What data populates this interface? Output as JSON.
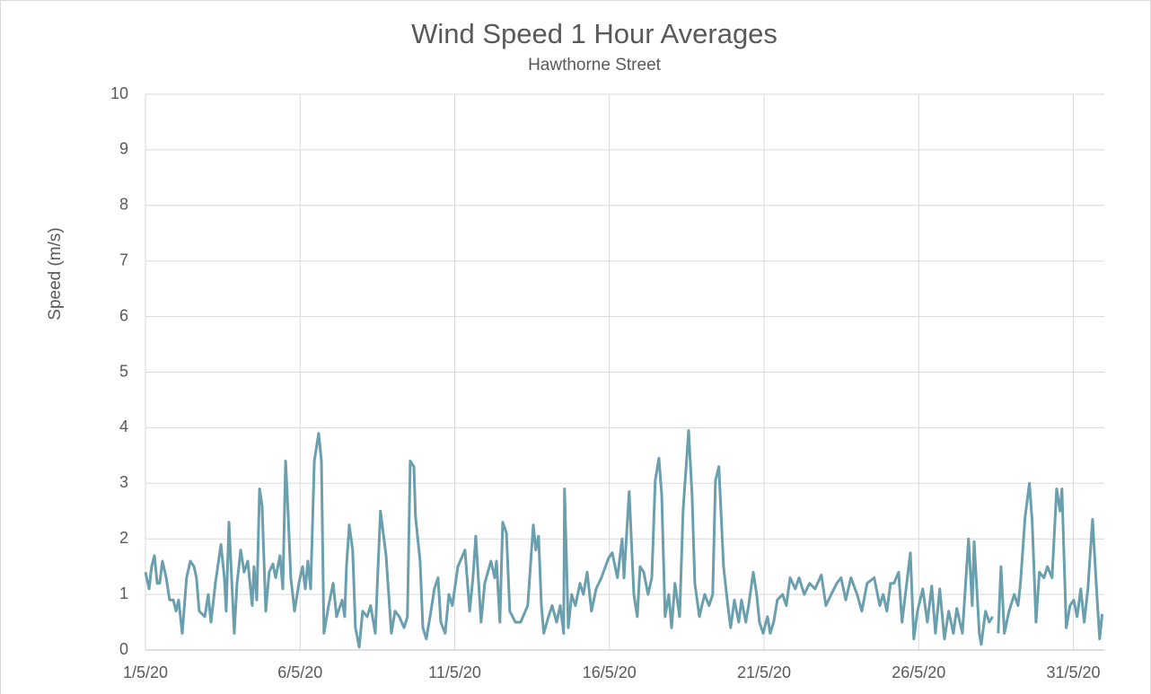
{
  "chart_data": {
    "type": "line",
    "title": "Wind Speed 1 Hour Averages",
    "subtitle": "Hawthorne  Street",
    "y_label": "Speed (m/s)",
    "color": "#6a9fae",
    "grid": true,
    "xlim": [
      0,
      31
    ],
    "ylim": [
      0,
      10
    ],
    "yticks": [
      0,
      1,
      2,
      3,
      4,
      5,
      6,
      7,
      8,
      9,
      10
    ],
    "xticks": [
      {
        "value": 0,
        "label": "1/5/20"
      },
      {
        "value": 5,
        "label": "6/5/20"
      },
      {
        "value": 10,
        "label": "11/5/20"
      },
      {
        "value": 15,
        "label": "16/5/20"
      },
      {
        "value": 20,
        "label": "21/5/20"
      },
      {
        "value": 25,
        "label": "26/5/20"
      },
      {
        "value": 30,
        "label": "31/5/20"
      }
    ],
    "x": [
      0,
      0.12,
      0.2,
      0.29,
      0.38,
      0.46,
      0.55,
      0.67,
      0.78,
      0.9,
      0.99,
      1.07,
      1.19,
      1.33,
      1.45,
      1.57,
      1.65,
      1.74,
      1.92,
      2.03,
      2.12,
      2.26,
      2.44,
      2.55,
      2.61,
      2.7,
      2.87,
      2.96,
      3.08,
      3.19,
      3.31,
      3.45,
      3.51,
      3.6,
      3.69,
      3.77,
      3.89,
      4,
      4.12,
      4.21,
      4.35,
      4.44,
      4.53,
      4.61,
      4.7,
      4.82,
      4.96,
      5.08,
      5.17,
      5.25,
      5.34,
      5.46,
      5.6,
      5.69,
      5.77,
      5.92,
      6.07,
      6.18,
      6.36,
      6.44,
      6.5,
      6.59,
      6.7,
      6.79,
      6.91,
      7.02,
      7.17,
      7.28,
      7.43,
      7.52,
      7.6,
      7.78,
      7.95,
      8.07,
      8.21,
      8.36,
      8.47,
      8.56,
      8.68,
      8.73,
      8.88,
      8.97,
      9.08,
      9.23,
      9.34,
      9.46,
      9.55,
      9.69,
      9.81,
      9.92,
      10.1,
      10.33,
      10.48,
      10.59,
      10.68,
      10.85,
      10.97,
      11.17,
      11.29,
      11.35,
      11.46,
      11.55,
      11.67,
      11.78,
      11.96,
      12.13,
      12.36,
      12.54,
      12.62,
      12.71,
      12.8,
      12.88,
      13.03,
      13.15,
      13.29,
      13.41,
      13.52,
      13.55,
      13.67,
      13.78,
      13.9,
      14.05,
      14.16,
      14.28,
      14.42,
      14.57,
      14.74,
      14.97,
      15.09,
      15.26,
      15.41,
      15.47,
      15.64,
      15.79,
      15.9,
      15.99,
      16.11,
      16.25,
      16.37,
      16.48,
      16.6,
      16.69,
      16.8,
      16.92,
      17.01,
      17.12,
      17.27,
      17.38,
      17.56,
      17.67,
      17.76,
      17.91,
      17.99,
      18.08,
      18.22,
      18.34,
      18.43,
      18.54,
      18.69,
      18.83,
      18.92,
      19.04,
      19.18,
      19.27,
      19.41,
      19.5,
      19.65,
      19.76,
      19.85,
      19.97,
      20.11,
      20.2,
      20.31,
      20.43,
      20.6,
      20.72,
      20.84,
      21.01,
      21.13,
      21.3,
      21.47,
      21.65,
      21.85,
      22,
      22.17,
      22.35,
      22.49,
      22.64,
      22.81,
      23.01,
      23.16,
      23.33,
      23.56,
      23.74,
      23.85,
      23.97,
      24.09,
      24.2,
      24.35,
      24.46,
      24.73,
      24.84,
      24.96,
      25.13,
      25.28,
      25.42,
      25.54,
      25.68,
      25.83,
      25.97,
      26.12,
      26.23,
      26.41,
      26.61,
      26.73,
      26.79,
      26.96,
      27.02,
      27.16,
      27.28,
      27.39,
      27.48,
      27.57,
      27.66,
      27.77,
      27.92,
      28.09,
      28.21,
      28.29,
      28.44,
      28.58,
      28.67,
      28.79,
      28.9,
      29.05,
      29.16,
      29.31,
      29.46,
      29.57,
      29.63,
      29.77,
      29.89,
      30.01,
      30.12,
      30.24,
      30.35,
      30.47,
      30.62,
      30.76,
      30.85,
      30.93
    ],
    "values": [
      1.4,
      1.1,
      1.5,
      1.7,
      1.2,
      1.2,
      1.6,
      1.3,
      0.9,
      0.9,
      0.7,
      0.9,
      0.3,
      1.3,
      1.6,
      1.5,
      1.3,
      0.7,
      0.6,
      1.0,
      0.5,
      1.2,
      1.9,
      1.3,
      0.7,
      2.3,
      0.3,
      1.2,
      1.8,
      1.4,
      1.6,
      0.8,
      1.5,
      0.9,
      2.9,
      2.6,
      0.7,
      1.4,
      1.55,
      1.3,
      1.7,
      1.1,
      3.4,
      2.5,
      1.3,
      0.7,
      1.2,
      1.5,
      1.1,
      1.6,
      1.1,
      3.4,
      3.9,
      3.4,
      0.3,
      0.8,
      1.2,
      0.6,
      0.9,
      0.6,
      1.5,
      2.25,
      1.8,
      0.4,
      0.05,
      0.7,
      0.6,
      0.8,
      0.3,
      1.5,
      2.5,
      1.7,
      0.3,
      0.7,
      0.6,
      0.4,
      0.6,
      3.4,
      3.3,
      2.4,
      1.6,
      0.4,
      0.2,
      0.7,
      1.1,
      1.3,
      0.5,
      0.3,
      1.0,
      0.8,
      1.5,
      1.8,
      0.7,
      1.3,
      2.05,
      0.5,
      1.2,
      1.6,
      1.3,
      1.6,
      0.5,
      2.3,
      2.1,
      0.7,
      0.5,
      0.5,
      0.8,
      2.25,
      1.8,
      2.05,
      0.8,
      0.3,
      0.6,
      0.8,
      0.5,
      0.8,
      0.3,
      2.9,
      0.4,
      1.0,
      0.8,
      1.2,
      1.0,
      1.4,
      0.7,
      1.1,
      1.3,
      1.65,
      1.75,
      1.3,
      2.0,
      1.3,
      2.85,
      1.0,
      0.6,
      1.5,
      1.4,
      1.0,
      1.3,
      3.05,
      3.45,
      2.8,
      0.6,
      1.0,
      0.4,
      1.2,
      0.6,
      2.5,
      3.95,
      2.8,
      1.2,
      0.6,
      0.8,
      1.0,
      0.8,
      1.0,
      3.05,
      3.3,
      1.5,
      0.8,
      0.4,
      0.9,
      0.5,
      0.9,
      0.5,
      0.8,
      1.4,
      1.0,
      0.5,
      0.3,
      0.6,
      0.3,
      0.5,
      0.9,
      1.0,
      0.8,
      1.3,
      1.1,
      1.3,
      1.0,
      1.2,
      1.1,
      1.35,
      0.8,
      1.0,
      1.2,
      1.3,
      0.9,
      1.3,
      1.0,
      0.7,
      1.2,
      1.3,
      0.8,
      1.0,
      0.7,
      1.2,
      1.2,
      1.4,
      0.5,
      1.75,
      0.2,
      0.7,
      1.1,
      0.5,
      1.15,
      0.3,
      1.1,
      0.2,
      0.7,
      0.3,
      0.75,
      0.3,
      2.0,
      0.8,
      1.95,
      0.3,
      0.1,
      0.7,
      0.5,
      0.6,
      null,
      0.3,
      1.5,
      0.3,
      0.7,
      1.0,
      0.8,
      1.2,
      2.4,
      3.0,
      2.3,
      0.5,
      1.4,
      1.3,
      1.5,
      1.3,
      2.9,
      2.5,
      2.9,
      0.4,
      0.8,
      0.9,
      0.6,
      1.1,
      0.5,
      1.1,
      2.35,
      1.0,
      0.2,
      0.65
    ]
  }
}
